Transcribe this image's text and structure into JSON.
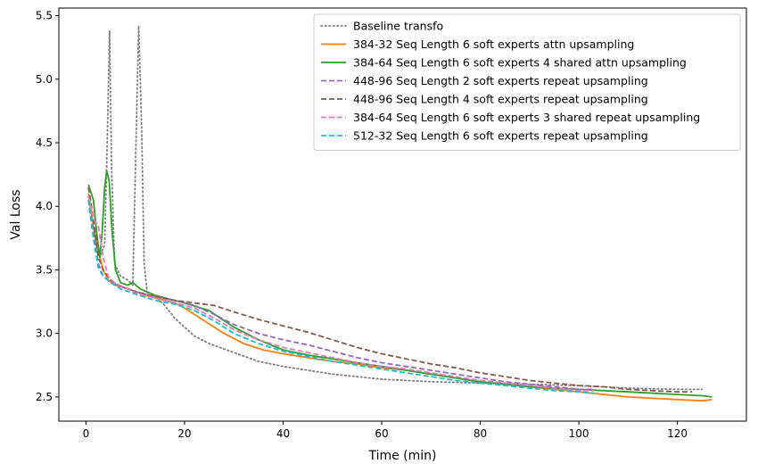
{
  "chart_data": {
    "type": "line",
    "xlabel": "Time (min)",
    "ylabel": "Val Loss",
    "xlim": [
      -5.5,
      134
    ],
    "ylim": [
      2.31,
      5.56
    ],
    "xticks": [
      0,
      20,
      40,
      60,
      80,
      100,
      120
    ],
    "yticks": [
      2.5,
      3.0,
      3.5,
      4.0,
      4.5,
      5.0,
      5.5
    ],
    "xtick_labels": [
      "0",
      "20",
      "40",
      "60",
      "80",
      "100",
      "120"
    ],
    "ytick_labels": [
      "2.5",
      "3.0",
      "3.5",
      "4.0",
      "4.5",
      "5.0",
      "5.5"
    ],
    "grid": false,
    "legend_position": "upper right",
    "series": [
      {
        "name": "Baseline transfo",
        "color": "#7f7f7f",
        "style": "dotted",
        "points": [
          [
            0.5,
            4.08
          ],
          [
            1.2,
            3.9
          ],
          [
            2,
            3.7
          ],
          [
            3,
            3.62
          ],
          [
            3.8,
            3.7
          ],
          [
            4.3,
            4.5
          ],
          [
            4.8,
            5.38
          ],
          [
            5.2,
            4.3
          ],
          [
            5.8,
            3.55
          ],
          [
            7,
            3.45
          ],
          [
            8.5,
            3.42
          ],
          [
            9.5,
            3.38
          ],
          [
            10.2,
            4.6
          ],
          [
            10.7,
            5.42
          ],
          [
            11.3,
            4.6
          ],
          [
            11.8,
            3.55
          ],
          [
            12.5,
            3.3
          ],
          [
            14,
            3.3
          ],
          [
            16,
            3.22
          ],
          [
            18,
            3.12
          ],
          [
            20,
            3.05
          ],
          [
            22,
            2.98
          ],
          [
            25,
            2.92
          ],
          [
            30,
            2.85
          ],
          [
            35,
            2.78
          ],
          [
            40,
            2.74
          ],
          [
            45,
            2.71
          ],
          [
            50,
            2.68
          ],
          [
            55,
            2.66
          ],
          [
            60,
            2.64
          ],
          [
            65,
            2.63
          ],
          [
            70,
            2.62
          ],
          [
            80,
            2.61
          ],
          [
            90,
            2.6
          ],
          [
            100,
            2.59
          ],
          [
            110,
            2.57
          ],
          [
            120,
            2.56
          ],
          [
            125,
            2.56
          ]
        ]
      },
      {
        "name": "384-32 Seq Length 6 soft experts attn upsampling",
        "color": "#ff7f0e",
        "style": "solid",
        "points": [
          [
            0.5,
            4.1
          ],
          [
            1.5,
            3.85
          ],
          [
            2.5,
            3.65
          ],
          [
            3.5,
            3.5
          ],
          [
            4.5,
            3.42
          ],
          [
            6,
            3.38
          ],
          [
            8,
            3.36
          ],
          [
            10,
            3.33
          ],
          [
            12,
            3.3
          ],
          [
            15,
            3.27
          ],
          [
            18,
            3.24
          ],
          [
            20,
            3.2
          ],
          [
            24,
            3.1
          ],
          [
            28,
            3.0
          ],
          [
            32,
            2.92
          ],
          [
            36,
            2.87
          ],
          [
            40,
            2.84
          ],
          [
            45,
            2.81
          ],
          [
            50,
            2.78
          ],
          [
            55,
            2.76
          ],
          [
            60,
            2.73
          ],
          [
            65,
            2.71
          ],
          [
            70,
            2.68
          ],
          [
            75,
            2.65
          ],
          [
            80,
            2.62
          ],
          [
            85,
            2.6
          ],
          [
            90,
            2.58
          ],
          [
            95,
            2.56
          ],
          [
            100,
            2.54
          ],
          [
            105,
            2.52
          ],
          [
            110,
            2.5
          ],
          [
            115,
            2.49
          ],
          [
            120,
            2.48
          ],
          [
            125,
            2.47
          ],
          [
            127,
            2.48
          ]
        ]
      },
      {
        "name": "384-64 Seq Length 6 soft experts 4 shared attn upsampling",
        "color": "#2ca02c",
        "style": "solid",
        "points": [
          [
            0.5,
            4.17
          ],
          [
            1.5,
            4.05
          ],
          [
            2.3,
            3.75
          ],
          [
            2.8,
            3.6
          ],
          [
            3.3,
            3.8
          ],
          [
            3.8,
            4.15
          ],
          [
            4.2,
            4.28
          ],
          [
            4.7,
            4.2
          ],
          [
            5.3,
            3.8
          ],
          [
            6,
            3.5
          ],
          [
            7,
            3.4
          ],
          [
            8.5,
            3.38
          ],
          [
            9.5,
            3.4
          ],
          [
            11,
            3.35
          ],
          [
            14,
            3.3
          ],
          [
            18,
            3.26
          ],
          [
            20,
            3.24
          ],
          [
            25,
            3.18
          ],
          [
            30,
            3.05
          ],
          [
            35,
            2.95
          ],
          [
            40,
            2.87
          ],
          [
            45,
            2.83
          ],
          [
            50,
            2.8
          ],
          [
            55,
            2.77
          ],
          [
            60,
            2.74
          ],
          [
            65,
            2.71
          ],
          [
            70,
            2.68
          ],
          [
            75,
            2.65
          ],
          [
            80,
            2.62
          ],
          [
            85,
            2.6
          ],
          [
            90,
            2.58
          ],
          [
            95,
            2.57
          ],
          [
            100,
            2.56
          ],
          [
            105,
            2.55
          ],
          [
            110,
            2.54
          ],
          [
            115,
            2.53
          ],
          [
            120,
            2.52
          ],
          [
            125,
            2.51
          ],
          [
            127,
            2.5
          ]
        ]
      },
      {
        "name": "448-96 Seq Length 2 soft experts repeat upsampling",
        "color": "#9467bd",
        "style": "dashed",
        "points": [
          [
            0.5,
            4.05
          ],
          [
            1.5,
            3.8
          ],
          [
            2.5,
            3.55
          ],
          [
            3.5,
            3.45
          ],
          [
            5,
            3.4
          ],
          [
            7,
            3.37
          ],
          [
            10,
            3.33
          ],
          [
            14,
            3.29
          ],
          [
            18,
            3.26
          ],
          [
            22,
            3.22
          ],
          [
            26,
            3.15
          ],
          [
            30,
            3.07
          ],
          [
            35,
            3.0
          ],
          [
            40,
            2.95
          ],
          [
            45,
            2.91
          ],
          [
            50,
            2.86
          ],
          [
            55,
            2.81
          ],
          [
            60,
            2.77
          ],
          [
            65,
            2.74
          ],
          [
            70,
            2.71
          ],
          [
            75,
            2.68
          ],
          [
            80,
            2.65
          ],
          [
            85,
            2.62
          ],
          [
            90,
            2.6
          ],
          [
            95,
            2.58
          ],
          [
            100,
            2.56
          ],
          [
            103,
            2.56
          ]
        ]
      },
      {
        "name": "448-96 Seq Length 4 soft experts repeat upsampling",
        "color": "#8c564b",
        "style": "dashed",
        "points": [
          [
            0.5,
            4.15
          ],
          [
            1.5,
            3.9
          ],
          [
            2.5,
            3.6
          ],
          [
            3.5,
            3.5
          ],
          [
            5,
            3.42
          ],
          [
            7,
            3.37
          ],
          [
            10,
            3.33
          ],
          [
            14,
            3.29
          ],
          [
            18,
            3.26
          ],
          [
            22,
            3.24
          ],
          [
            26,
            3.22
          ],
          [
            30,
            3.17
          ],
          [
            35,
            3.11
          ],
          [
            40,
            3.06
          ],
          [
            45,
            3.01
          ],
          [
            50,
            2.95
          ],
          [
            55,
            2.89
          ],
          [
            60,
            2.84
          ],
          [
            65,
            2.8
          ],
          [
            70,
            2.76
          ],
          [
            75,
            2.73
          ],
          [
            80,
            2.69
          ],
          [
            85,
            2.66
          ],
          [
            90,
            2.63
          ],
          [
            95,
            2.61
          ],
          [
            100,
            2.59
          ],
          [
            105,
            2.58
          ],
          [
            110,
            2.56
          ],
          [
            115,
            2.55
          ],
          [
            120,
            2.54
          ],
          [
            123,
            2.54
          ]
        ]
      },
      {
        "name": "384-64 Seq Length 6 soft experts 3 shared repeat upsampling",
        "color": "#e377c2",
        "style": "dashed",
        "points": [
          [
            0.5,
            4.08
          ],
          [
            1.5,
            3.9
          ],
          [
            2.5,
            3.85
          ],
          [
            3.5,
            3.6
          ],
          [
            4.5,
            3.45
          ],
          [
            6,
            3.39
          ],
          [
            8,
            3.36
          ],
          [
            10,
            3.32
          ],
          [
            14,
            3.28
          ],
          [
            18,
            3.24
          ],
          [
            22,
            3.2
          ],
          [
            26,
            3.12
          ],
          [
            30,
            3.03
          ],
          [
            35,
            2.95
          ],
          [
            40,
            2.89
          ],
          [
            45,
            2.85
          ],
          [
            50,
            2.81
          ],
          [
            55,
            2.77
          ],
          [
            60,
            2.74
          ],
          [
            65,
            2.72
          ],
          [
            70,
            2.69
          ],
          [
            75,
            2.66
          ],
          [
            80,
            2.63
          ],
          [
            85,
            2.61
          ],
          [
            90,
            2.59
          ],
          [
            95,
            2.57
          ],
          [
            100,
            2.55
          ],
          [
            103,
            2.55
          ]
        ]
      },
      {
        "name": "512-32 Seq Length 6 soft experts repeat upsampling",
        "color": "#17becf",
        "style": "dashed",
        "points": [
          [
            0.5,
            4.05
          ],
          [
            1.5,
            3.75
          ],
          [
            2.5,
            3.52
          ],
          [
            3.5,
            3.45
          ],
          [
            5,
            3.4
          ],
          [
            7,
            3.35
          ],
          [
            10,
            3.31
          ],
          [
            14,
            3.26
          ],
          [
            18,
            3.23
          ],
          [
            22,
            3.18
          ],
          [
            26,
            3.1
          ],
          [
            30,
            3.0
          ],
          [
            35,
            2.92
          ],
          [
            40,
            2.86
          ],
          [
            45,
            2.82
          ],
          [
            50,
            2.78
          ],
          [
            55,
            2.75
          ],
          [
            60,
            2.72
          ],
          [
            65,
            2.69
          ],
          [
            70,
            2.66
          ],
          [
            75,
            2.63
          ],
          [
            80,
            2.61
          ],
          [
            85,
            2.59
          ],
          [
            90,
            2.57
          ],
          [
            95,
            2.55
          ],
          [
            100,
            2.54
          ],
          [
            103,
            2.53
          ]
        ]
      }
    ]
  }
}
